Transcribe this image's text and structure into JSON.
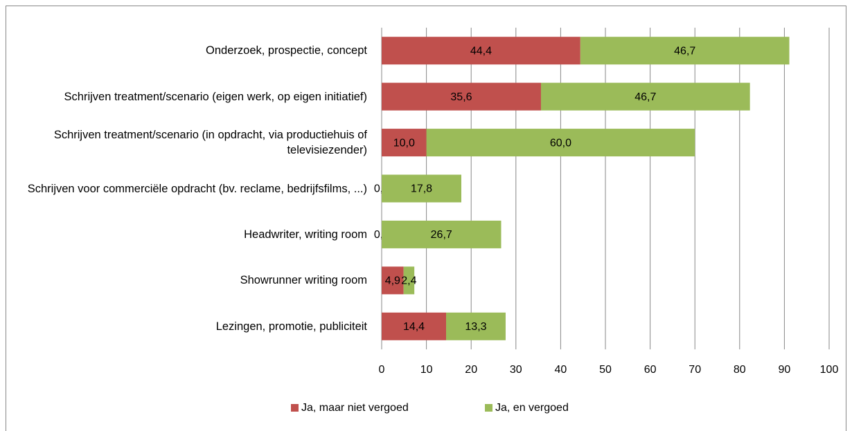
{
  "chart_data": {
    "type": "stacked-barh",
    "categories": [
      "Onderzoek, prospectie, concept",
      "Schrijven treatment/scenario (eigen werk, op eigen initiatief)",
      "Schrijven treatment/scenario (in opdracht, via productiehuis of televisiezender)",
      "Schrijven voor commerciële opdracht (bv. reclame, bedrijfsfilms, ...)",
      "Headwriter, writing room",
      "Showrunner writing room",
      "Lezingen, promotie, publiciteit"
    ],
    "series": [
      {
        "name": "Ja, maar niet vergoed",
        "color": "#c0504d",
        "values": [
          44.4,
          35.6,
          10.0,
          0.0,
          0.0,
          4.9,
          14.4
        ],
        "value_labels": [
          "44,4",
          "35,6",
          "10,0",
          "0,0",
          "0,0",
          "4,9",
          "14,4"
        ]
      },
      {
        "name": "Ja, en vergoed",
        "color": "#9bbb59",
        "values": [
          46.7,
          46.7,
          60.0,
          17.8,
          26.7,
          2.4,
          13.3
        ],
        "value_labels": [
          "46,7",
          "46,7",
          "60,0",
          "17,8",
          "26,7",
          "2,4",
          "13,3"
        ]
      }
    ],
    "xlim": [
      0,
      100
    ],
    "xticks": [
      0,
      10,
      20,
      30,
      40,
      50,
      60,
      70,
      80,
      90,
      100
    ],
    "grid": true,
    "legend": "bottom"
  }
}
